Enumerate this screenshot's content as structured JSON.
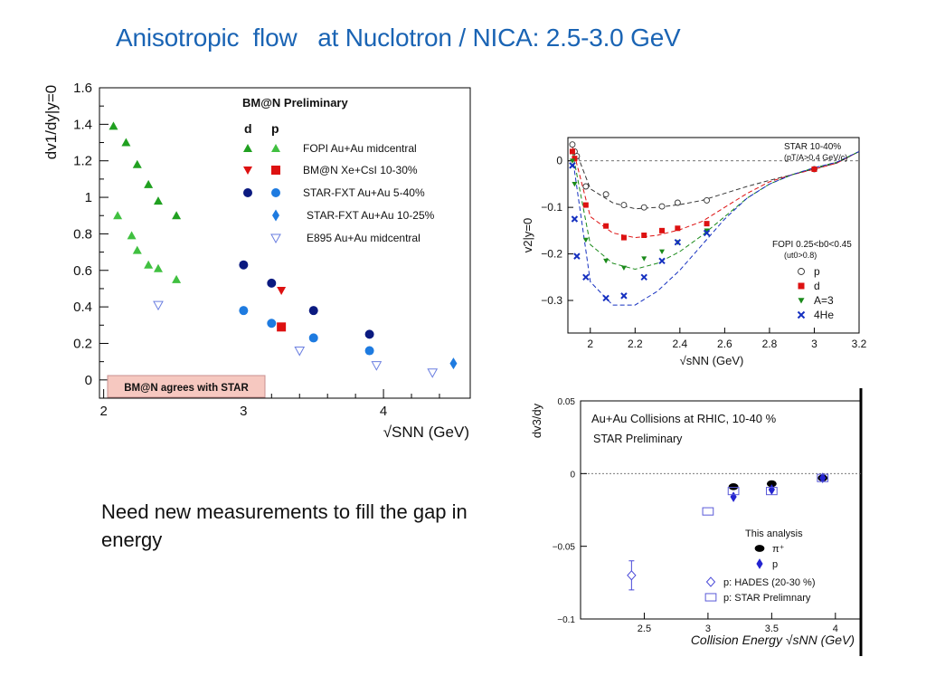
{
  "slide": {
    "title": "Anisotropic  flow   at Nuclotron / NICA: 2.5-3.0 GeV",
    "note": "Need new measurements to fill the gap in energy"
  },
  "colors": {
    "title": "#1a64b4",
    "fopi_green": "#20a020",
    "bmn_red": "#dd1111",
    "star_navy": "#0b1a80",
    "star_blue": "#1e7be0",
    "e895_outline": "#6a7ee0",
    "agree_box": "#f6c8c0"
  },
  "chart_data": [
    {
      "type": "scatter",
      "title": "BM@N Preliminary",
      "ylabel": "dv1/dy|y=0",
      "xlabel": "√SNN (GeV)",
      "xlim": [
        1.97,
        4.62
      ],
      "ylim": [
        -0.1,
        1.6
      ],
      "xticks": [
        "2",
        "3",
        "4"
      ],
      "yticks": [
        "0",
        "0.2",
        "0.4",
        "0.6",
        "0.8",
        "1",
        "1.2",
        "1.4",
        "1.6"
      ],
      "legend_position": "top-right",
      "legend_header": {
        "d": "d",
        "p": "p"
      },
      "legend": [
        {
          "label": "FOPI Au+Au midcentral"
        },
        {
          "label": "BM@N Xe+CsI 10-30%"
        },
        {
          "label": "STAR-FXT Au+Au 5-40%"
        },
        {
          "label": "STAR-FXT Au+Au 10-25%"
        },
        {
          "label": "E895 Au+Au midcentral"
        }
      ],
      "annotation": "BM@N agrees with STAR",
      "series": [
        {
          "name": "FOPI Au+Au midcentral (d)",
          "marker": "triangle",
          "color": "#20a020",
          "x": [
            2.07,
            2.16,
            2.24,
            2.32,
            2.39,
            2.52
          ],
          "y": [
            1.39,
            1.3,
            1.18,
            1.07,
            0.98,
            0.9
          ]
        },
        {
          "name": "FOPI Au+Au midcentral (p)",
          "marker": "triangle",
          "color": "#40c040",
          "x": [
            2.1,
            2.2,
            2.24,
            2.32,
            2.39,
            2.52
          ],
          "y": [
            0.9,
            0.79,
            0.71,
            0.63,
            0.61,
            0.55
          ]
        },
        {
          "name": "BM@N Xe+CsI 10-30% (d)",
          "marker": "triangle-down",
          "color": "#dd1111",
          "x": [
            3.27
          ],
          "y": [
            0.49
          ]
        },
        {
          "name": "BM@N Xe+CsI 10-30% (p)",
          "marker": "square",
          "color": "#dd1111",
          "x": [
            3.27
          ],
          "y": [
            0.29
          ]
        },
        {
          "name": "STAR-FXT Au+Au 5-40% (d)",
          "marker": "circle",
          "color": "#0b1a80",
          "x": [
            3.0,
            3.2,
            3.5,
            3.9
          ],
          "y": [
            0.63,
            0.53,
            0.38,
            0.25
          ]
        },
        {
          "name": "STAR-FXT Au+Au 5-40% (p)",
          "marker": "circle",
          "color": "#1e7be0",
          "x": [
            3.0,
            3.2,
            3.5,
            3.9
          ],
          "y": [
            0.38,
            0.31,
            0.23,
            0.16
          ]
        },
        {
          "name": "STAR-FXT Au+Au 10-25% (p)",
          "marker": "diamond",
          "color": "#1e7be0",
          "x": [
            4.5
          ],
          "y": [
            0.09
          ]
        },
        {
          "name": "E895 Au+Au midcentral (p)",
          "marker": "triangle-down-open",
          "color": "#6a7ee0",
          "x": [
            2.39,
            3.4,
            3.95,
            4.35
          ],
          "y": [
            0.41,
            0.16,
            0.08,
            0.04
          ]
        }
      ]
    },
    {
      "type": "scatter",
      "title": "",
      "ylabel": "v2|y=0",
      "xlabel": "√sNN (GeV)",
      "xlim": [
        1.9,
        3.2
      ],
      "ylim": [
        -0.37,
        0.05
      ],
      "xticks": [
        "2",
        "2.2",
        "2.4",
        "2.6",
        "2.8",
        "3",
        "3.2"
      ],
      "yticks": [
        "0",
        "−0.1",
        "−0.2",
        "−0.3"
      ],
      "annotations": [
        "STAR 10-40%",
        "(pT/A>0.4 GeV/c)",
        "FOPI 0.25<b0<0.45",
        "(ut0>0.8)"
      ],
      "legend_position": "right",
      "legend": [
        {
          "label": "p"
        },
        {
          "label": "d"
        },
        {
          "label": "A=3"
        },
        {
          "label": "4He"
        }
      ],
      "series": [
        {
          "name": "p",
          "marker": "circle-open",
          "color": "#333333",
          "x": [
            1.92,
            1.93,
            1.94,
            1.98,
            2.07,
            2.15,
            2.24,
            2.32,
            2.39,
            2.52,
            3.0
          ],
          "y": [
            0.035,
            0.02,
            0.01,
            -0.055,
            -0.072,
            -0.095,
            -0.1,
            -0.098,
            -0.09,
            -0.085,
            -0.018
          ]
        },
        {
          "name": "d",
          "marker": "square",
          "color": "#dd1111",
          "x": [
            1.92,
            1.93,
            1.98,
            2.07,
            2.15,
            2.24,
            2.32,
            2.39,
            2.52,
            3.0
          ],
          "y": [
            0.02,
            0.005,
            -0.095,
            -0.14,
            -0.165,
            -0.16,
            -0.15,
            -0.145,
            -0.135,
            -0.018
          ]
        },
        {
          "name": "A=3",
          "marker": "triangle-down",
          "color": "#1a8a1a",
          "x": [
            1.92,
            1.93,
            1.98,
            2.07,
            2.15,
            2.24,
            2.32,
            2.39,
            2.52
          ],
          "y": [
            0.0,
            -0.05,
            -0.17,
            -0.215,
            -0.23,
            -0.21,
            -0.195,
            -0.175,
            -0.15
          ]
        },
        {
          "name": "4He",
          "marker": "x",
          "color": "#1530c0",
          "x": [
            1.92,
            1.93,
            1.94,
            1.98,
            2.07,
            2.15,
            2.24,
            2.32,
            2.39,
            2.52
          ],
          "y": [
            -0.01,
            -0.125,
            -0.205,
            -0.25,
            -0.295,
            -0.29,
            -0.25,
            -0.215,
            -0.175,
            -0.155
          ]
        }
      ],
      "fits": [
        {
          "name": "p",
          "color": "#333333",
          "x": [
            1.92,
            2.0,
            2.1,
            2.2,
            2.3,
            2.4,
            2.5,
            2.6,
            2.7,
            2.8,
            2.9,
            3.0,
            3.1,
            3.2
          ],
          "y": [
            0.04,
            -0.06,
            -0.09,
            -0.103,
            -0.1,
            -0.094,
            -0.085,
            -0.07,
            -0.055,
            -0.042,
            -0.03,
            -0.017,
            -0.005,
            0.02
          ]
        },
        {
          "name": "d",
          "color": "#dd1111",
          "x": [
            1.92,
            2.0,
            2.1,
            2.2,
            2.3,
            2.4,
            2.5,
            2.6,
            2.7,
            2.8,
            2.9,
            3.0,
            3.1,
            3.2
          ],
          "y": [
            0.03,
            -0.12,
            -0.155,
            -0.165,
            -0.16,
            -0.148,
            -0.13,
            -0.1,
            -0.07,
            -0.045,
            -0.03,
            -0.018,
            -0.005,
            0.02
          ]
        },
        {
          "name": "A=3",
          "color": "#1a8a1a",
          "x": [
            1.92,
            2.0,
            2.1,
            2.2,
            2.3,
            2.4,
            2.5,
            2.6,
            2.7,
            2.8,
            2.9,
            3.0,
            3.1,
            3.2
          ],
          "y": [
            0.02,
            -0.18,
            -0.22,
            -0.233,
            -0.22,
            -0.195,
            -0.16,
            -0.12,
            -0.08,
            -0.05,
            -0.03,
            -0.015,
            -0.003,
            0.02
          ]
        },
        {
          "name": "4He",
          "color": "#1530c0",
          "x": [
            1.92,
            2.0,
            2.1,
            2.2,
            2.3,
            2.4,
            2.5,
            2.6,
            2.7,
            2.8,
            2.9,
            3.0,
            3.1,
            3.2
          ],
          "y": [
            0.01,
            -0.26,
            -0.31,
            -0.31,
            -0.28,
            -0.235,
            -0.18,
            -0.125,
            -0.08,
            -0.05,
            -0.03,
            -0.015,
            -0.003,
            0.02
          ]
        }
      ]
    },
    {
      "type": "scatter",
      "title": "Au+Au Collisions at RHIC, 10-40 %",
      "subtitle": "STAR Preliminary",
      "ylabel": "dv3/dy",
      "xlabel": "Collision Energy √sNN (GeV)",
      "xlim": [
        2.0,
        4.2
      ],
      "ylim": [
        -0.1,
        0.05
      ],
      "xticks": [
        "2.5",
        "3",
        "3.5",
        "4"
      ],
      "yticks": [
        "0.05",
        "0",
        "−0.05",
        "−0.1"
      ],
      "legend_position": "bottom-right",
      "legend_title": "This analysis",
      "legend": [
        {
          "label": "π⁺"
        },
        {
          "label": "p"
        },
        {
          "label": "p: HADES (20-30 %)"
        },
        {
          "label": "p: STAR Prelimnary"
        }
      ],
      "series": [
        {
          "name": "π⁺",
          "marker": "ellipse",
          "color": "#000000",
          "x": [
            3.2,
            3.5,
            3.9
          ],
          "y": [
            -0.009,
            -0.007,
            -0.003
          ]
        },
        {
          "name": "p",
          "marker": "diamond",
          "color": "#2424d0",
          "x": [
            3.2,
            3.5,
            3.9
          ],
          "y": [
            -0.016,
            -0.011,
            -0.003
          ]
        },
        {
          "name": "p: HADES (20-30 %)",
          "marker": "diamond-open",
          "color": "#4a4ad8",
          "x": [
            2.4
          ],
          "y": [
            -0.07
          ],
          "yerr": [
            0.01
          ]
        },
        {
          "name": "p: STAR Prelimnary",
          "marker": "rect-open",
          "color": "#5a5ad8",
          "x": [
            3.0,
            3.2,
            3.5,
            3.9
          ],
          "y": [
            -0.026,
            -0.012,
            -0.012,
            -0.003
          ]
        }
      ]
    }
  ]
}
